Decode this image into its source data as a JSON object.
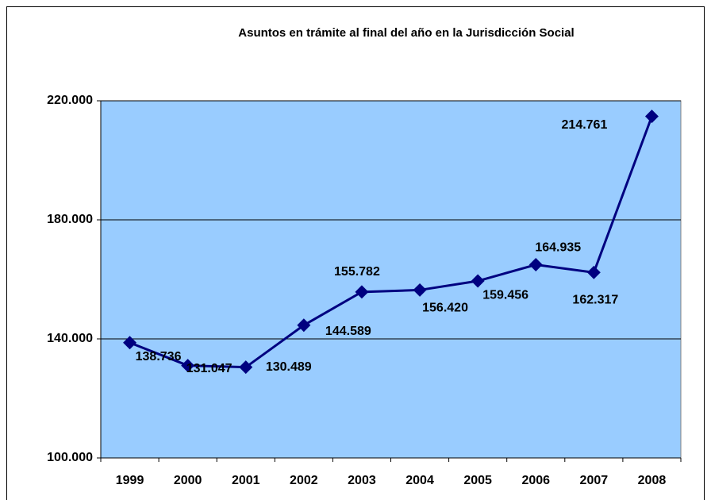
{
  "chart_data": {
    "type": "line",
    "title": "Asuntos en trámite al final del año en la Jurisdicción Social",
    "categories": [
      "1999",
      "2000",
      "2001",
      "2002",
      "2003",
      "2004",
      "2005",
      "2006",
      "2007",
      "2008"
    ],
    "series": [
      {
        "name": "Asuntos en trámite",
        "color": "#000080",
        "values": [
          138736,
          131047,
          130489,
          144589,
          155782,
          156420,
          159456,
          164935,
          162317,
          214761
        ],
        "value_labels": [
          "138.736",
          "131.047",
          "130.489",
          "144.589",
          "155.782",
          "156.420",
          "159.456",
          "164.935",
          "162.317",
          "214.761"
        ]
      }
    ],
    "ylim": [
      100000,
      220000
    ],
    "yticks": [
      {
        "value": 100000,
        "label": "100.000"
      },
      {
        "value": 140000,
        "label": "140.000"
      },
      {
        "value": 180000,
        "label": "180.000"
      },
      {
        "value": 220000,
        "label": "220.000"
      }
    ],
    "grid": true,
    "plot_background": "#99ccff"
  }
}
